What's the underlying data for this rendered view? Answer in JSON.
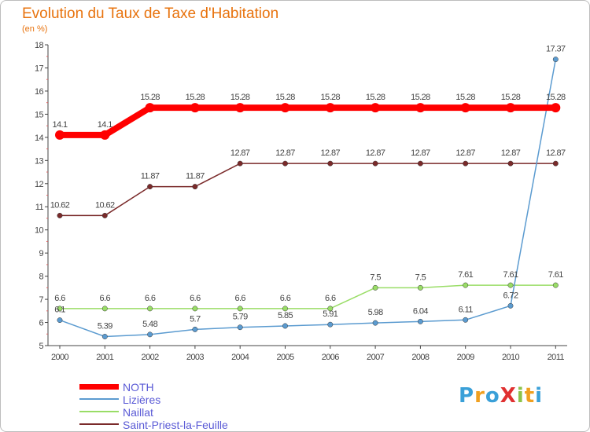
{
  "title": "Evolution du Taux de Taxe d'Habitation",
  "unit": "(en %)",
  "logo": {
    "text": "ProXiti",
    "colors": [
      "#3aa0d8",
      "#f0a020",
      "#3aa0d8",
      "#e03030",
      "#8bc34a",
      "#f0a020",
      "#3aa0d8"
    ]
  },
  "chart_data": {
    "type": "line",
    "x": [
      "2000",
      "2001",
      "2002",
      "2003",
      "2004",
      "2005",
      "2006",
      "2007",
      "2008",
      "2009",
      "2010",
      "2011"
    ],
    "ylim": [
      5,
      18
    ],
    "yticks": [
      5,
      6,
      7,
      8,
      9,
      10,
      11,
      12,
      13,
      14,
      15,
      16,
      17,
      18
    ],
    "grid": false,
    "legend_position": "bottom-left",
    "series": [
      {
        "name": "NOTH",
        "color": "#ff0000",
        "values": [
          14.1,
          14.1,
          15.28,
          15.28,
          15.28,
          15.28,
          15.28,
          15.28,
          15.28,
          15.28,
          15.28,
          15.28
        ],
        "labels": [
          "14.1",
          "14.1",
          "15.28",
          "15.28",
          "15.28",
          "15.28",
          "15.28",
          "15.28",
          "15.28",
          "15.28",
          "15.28",
          "15.28"
        ]
      },
      {
        "name": "Lizières",
        "color": "#5b9bd0",
        "values": [
          6.1,
          5.39,
          5.48,
          5.7,
          5.79,
          5.85,
          5.91,
          5.98,
          6.04,
          6.11,
          6.72,
          17.37
        ],
        "labels": [
          "6.1",
          "5.39",
          "5.48",
          "5.7",
          "5.79",
          "5.85",
          "5.91",
          "5.98",
          "6.04",
          "6.11",
          "6.72",
          "17.37"
        ]
      },
      {
        "name": "Naillat",
        "color": "#99dd66",
        "values": [
          6.6,
          6.6,
          6.6,
          6.6,
          6.6,
          6.6,
          6.6,
          7.5,
          7.5,
          7.61,
          7.61,
          7.61
        ],
        "labels": [
          "6.6",
          "6.6",
          "6.6",
          "6.6",
          "6.6",
          "6.6",
          "6.6",
          "7.5",
          "7.5",
          "7.61",
          "7.61",
          "7.61"
        ]
      },
      {
        "name": "Saint-Priest-la-Feuille",
        "color": "#7a2a2a",
        "values": [
          10.62,
          10.62,
          11.87,
          11.87,
          12.87,
          12.87,
          12.87,
          12.87,
          12.87,
          12.87,
          12.87,
          12.87
        ],
        "labels": [
          "10.62",
          "10.62",
          "11.87",
          "11.87",
          "12.87",
          "12.87",
          "12.87",
          "12.87",
          "12.87",
          "12.87",
          "12.87",
          "12.87"
        ]
      }
    ]
  }
}
